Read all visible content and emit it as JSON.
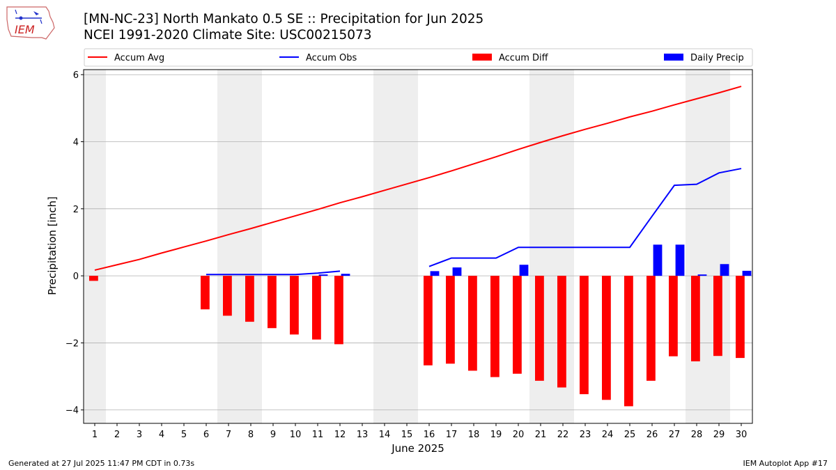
{
  "title_line1": "[MN-NC-23] North Mankato 0.5 SE :: Precipitation for Jun 2025",
  "title_line2": "NCEI 1991-2020 Climate Site: USC00215073",
  "logo_text": "IEM",
  "footer_left": "Generated at 27 Jul 2025 11:47 PM CDT in 0.73s",
  "footer_right": "IEM Autoplot App #17",
  "colors": {
    "accum_avg": "#ff0000",
    "accum_obs": "#0000ff",
    "accum_diff": "#ff0000",
    "daily_precip": "#0000ff",
    "weekend_shade": "#eeeeee",
    "grid": "#b0b0b0"
  },
  "chart_data": {
    "type": "bar",
    "xlabel": "June 2025",
    "ylabel": "Precipitation [inch]",
    "ylim": [
      -4.4,
      6.15
    ],
    "yticks": [
      -4,
      -2,
      0,
      2,
      4,
      6
    ],
    "ytick_labels": [
      "−4",
      "−2",
      "0",
      "2",
      "4",
      "6"
    ],
    "days": [
      1,
      2,
      3,
      4,
      5,
      6,
      7,
      8,
      9,
      10,
      11,
      12,
      13,
      14,
      15,
      16,
      17,
      18,
      19,
      20,
      21,
      22,
      23,
      24,
      25,
      26,
      27,
      28,
      29,
      30
    ],
    "weekend_days": [
      1,
      7,
      8,
      14,
      15,
      21,
      22,
      28,
      29
    ],
    "grid": "horizontal",
    "legend_position": "top",
    "legend": [
      "Accum Avg",
      "Accum Obs",
      "Accum Diff",
      "Daily Precip"
    ],
    "series": [
      {
        "name": "Accum Avg",
        "kind": "line",
        "color": "#ff0000",
        "values": [
          0.17,
          0.33,
          0.49,
          0.68,
          0.86,
          1.04,
          1.23,
          1.41,
          1.6,
          1.79,
          1.98,
          2.18,
          2.36,
          2.55,
          2.74,
          2.93,
          3.13,
          3.34,
          3.55,
          3.77,
          3.98,
          4.18,
          4.37,
          4.55,
          4.74,
          4.91,
          5.1,
          5.28,
          5.46,
          5.65
        ]
      },
      {
        "name": "Accum Obs",
        "kind": "line",
        "color": "#0000ff",
        "values": [
          null,
          null,
          null,
          null,
          null,
          0.04,
          0.04,
          0.04,
          0.04,
          0.04,
          0.08,
          0.14,
          null,
          null,
          null,
          0.28,
          0.53,
          0.53,
          0.53,
          0.85,
          0.85,
          0.85,
          0.85,
          0.85,
          0.85,
          1.78,
          2.7,
          2.73,
          3.07,
          3.2
        ]
      },
      {
        "name": "Accum Diff",
        "kind": "bar",
        "color": "#ff0000",
        "values": [
          -0.15,
          null,
          null,
          null,
          null,
          -1.0,
          -1.19,
          -1.37,
          -1.56,
          -1.75,
          -1.9,
          -2.04,
          null,
          null,
          null,
          -2.67,
          -2.62,
          -2.83,
          -3.02,
          -2.92,
          -3.13,
          -3.33,
          -3.53,
          -3.7,
          -3.89,
          -3.13,
          -2.4,
          -2.55,
          -2.39,
          -2.45
        ]
      },
      {
        "name": "Daily Precip",
        "kind": "bar",
        "color": "#0000ff",
        "values": [
          0,
          0,
          0,
          0,
          0,
          0,
          0,
          0,
          0,
          0,
          0.04,
          0.06,
          0,
          0,
          0,
          0.14,
          0.25,
          0,
          0,
          0.33,
          0,
          0,
          0,
          0,
          0,
          0.93,
          0.93,
          0.04,
          0.35,
          0.15
        ]
      }
    ]
  }
}
